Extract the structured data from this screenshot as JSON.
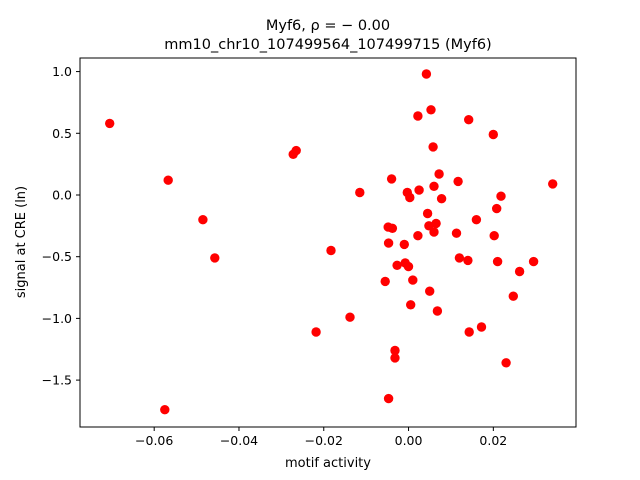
{
  "chart_data": {
    "type": "scatter",
    "title_line1": "Myf6, ρ = − 0.00",
    "title_line2": "mm10_chr10_107499564_107499715 (Myf6)",
    "xlabel": "motif activity",
    "ylabel": "signal at CRE (ln)",
    "xlim": [
      -0.0775,
      0.0395
    ],
    "ylim": [
      -1.88,
      1.11
    ],
    "xticks": [
      -0.06,
      -0.04,
      -0.02,
      0.0,
      0.02
    ],
    "xtick_labels": [
      "−0.06",
      "−0.04",
      "−0.02",
      "0.00",
      "0.02"
    ],
    "yticks": [
      1.0,
      0.5,
      0.0,
      -0.5,
      -1.0,
      -1.5
    ],
    "ytick_labels": [
      "1.0",
      "0.5",
      "0.0",
      "−0.5",
      "−1.0",
      "−1.5"
    ],
    "grid": false,
    "legend": "none",
    "marker_color": "#ff0000",
    "points": [
      {
        "x": -0.0705,
        "y": 0.58
      },
      {
        "x": -0.0567,
        "y": 0.12
      },
      {
        "x": -0.0575,
        "y": -1.74
      },
      {
        "x": -0.0485,
        "y": -0.2
      },
      {
        "x": -0.0457,
        "y": -0.51
      },
      {
        "x": -0.0265,
        "y": 0.36
      },
      {
        "x": -0.0272,
        "y": 0.33
      },
      {
        "x": -0.0218,
        "y": -1.11
      },
      {
        "x": -0.0183,
        "y": -0.45
      },
      {
        "x": -0.0138,
        "y": -0.99
      },
      {
        "x": -0.0115,
        "y": 0.02
      },
      {
        "x": -0.0055,
        "y": -0.7
      },
      {
        "x": -0.0048,
        "y": -0.26
      },
      {
        "x": -0.0047,
        "y": -0.39
      },
      {
        "x": -0.0047,
        "y": -1.65
      },
      {
        "x": -0.004,
        "y": 0.13
      },
      {
        "x": -0.0038,
        "y": -0.27
      },
      {
        "x": -0.0032,
        "y": -1.26
      },
      {
        "x": -0.0032,
        "y": -1.32
      },
      {
        "x": -0.0027,
        "y": -0.57
      },
      {
        "x": -0.001,
        "y": -0.4
      },
      {
        "x": -0.0008,
        "y": -0.55
      },
      {
        "x": -0.0003,
        "y": 0.02
      },
      {
        "x": 0.0,
        "y": -0.58
      },
      {
        "x": 0.0003,
        "y": -0.02
      },
      {
        "x": 0.0005,
        "y": -0.89
      },
      {
        "x": 0.001,
        "y": -0.69
      },
      {
        "x": 0.0022,
        "y": 0.64
      },
      {
        "x": 0.0022,
        "y": -0.33
      },
      {
        "x": 0.0025,
        "y": 0.04
      },
      {
        "x": 0.0042,
        "y": 0.98
      },
      {
        "x": 0.0045,
        "y": -0.15
      },
      {
        "x": 0.0048,
        "y": -0.25
      },
      {
        "x": 0.005,
        "y": -0.78
      },
      {
        "x": 0.0053,
        "y": 0.69
      },
      {
        "x": 0.0058,
        "y": 0.39
      },
      {
        "x": 0.006,
        "y": 0.07
      },
      {
        "x": 0.006,
        "y": -0.3
      },
      {
        "x": 0.0065,
        "y": -0.23
      },
      {
        "x": 0.0068,
        "y": -0.94
      },
      {
        "x": 0.0072,
        "y": 0.17
      },
      {
        "x": 0.0078,
        "y": -0.03
      },
      {
        "x": 0.0113,
        "y": -0.31
      },
      {
        "x": 0.0117,
        "y": 0.11
      },
      {
        "x": 0.012,
        "y": -0.51
      },
      {
        "x": 0.014,
        "y": -0.53
      },
      {
        "x": 0.0142,
        "y": 0.61
      },
      {
        "x": 0.0143,
        "y": -1.11
      },
      {
        "x": 0.016,
        "y": -0.2
      },
      {
        "x": 0.0172,
        "y": -1.07
      },
      {
        "x": 0.02,
        "y": 0.49
      },
      {
        "x": 0.0202,
        "y": -0.33
      },
      {
        "x": 0.0208,
        "y": -0.11
      },
      {
        "x": 0.021,
        "y": -0.54
      },
      {
        "x": 0.0218,
        "y": -0.01
      },
      {
        "x": 0.023,
        "y": -1.36
      },
      {
        "x": 0.0247,
        "y": -0.82
      },
      {
        "x": 0.0262,
        "y": -0.62
      },
      {
        "x": 0.0295,
        "y": -0.54
      },
      {
        "x": 0.034,
        "y": 0.09
      }
    ]
  }
}
